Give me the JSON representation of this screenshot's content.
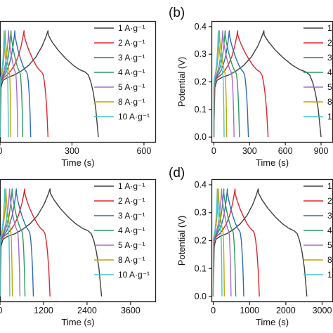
{
  "legend_entries": [
    "1 A·g⁻¹",
    "2 A·g⁻¹",
    "3 A·g⁻¹",
    "4 A·g⁻¹",
    "5 A·g⁻¹",
    "8 A·g⁻¹",
    "10 A·g⁻¹"
  ],
  "series_colors": [
    "#404040",
    "#e0232e",
    "#2c6cb5",
    "#2b9a5f",
    "#a86ad0",
    "#c4a400",
    "#3fc6d4"
  ],
  "chart_data": [
    {
      "panel": "a",
      "type": "line",
      "title": "",
      "xlabel": "Time (s)",
      "ylabel": "",
      "x_ticks": [
        "0",
        "300",
        "600"
      ],
      "x_ticks_partial": [
        "00"
      ],
      "y_ticks": [],
      "xlim": [
        0,
        650
      ],
      "ylim": [
        -0.02,
        0.42
      ],
      "legend": "top-right",
      "series": [
        {
          "name": "1 A·g⁻¹",
          "peak_time": 200,
          "end_time": 410
        },
        {
          "name": "2 A·g⁻¹",
          "peak_time": 100,
          "end_time": 200
        },
        {
          "name": "3 A·g⁻¹",
          "peak_time": 62,
          "end_time": 128
        },
        {
          "name": "4 A·g⁻¹",
          "peak_time": 46,
          "end_time": 95
        },
        {
          "name": "5 A·g⁻¹",
          "peak_time": 36,
          "end_time": 74
        },
        {
          "name": "8 A·g⁻¹",
          "peak_time": 22,
          "end_time": 45
        },
        {
          "name": "10 A·g⁻¹",
          "peak_time": 17,
          "end_time": 35
        }
      ]
    },
    {
      "panel": "b",
      "type": "line",
      "title": "",
      "xlabel": "Time (s)",
      "ylabel": "Potential (V)",
      "x_ticks": [
        "0",
        "300",
        "600",
        "900"
      ],
      "y_ticks": [
        "0.0",
        "0.1",
        "0.2",
        "0.3",
        "0.4"
      ],
      "xlim": [
        -20,
        1000
      ],
      "ylim": [
        -0.02,
        0.42
      ],
      "legend": "top-right",
      "series": [
        {
          "name": "1 A·g⁻¹",
          "peak_time": 420,
          "end_time": 900
        },
        {
          "name": "2 A·g⁻¹",
          "peak_time": 200,
          "end_time": 455
        },
        {
          "name": "3 A·g⁻¹",
          "peak_time": 130,
          "end_time": 290
        },
        {
          "name": "4 A·g⁻¹",
          "peak_time": 95,
          "end_time": 215
        },
        {
          "name": "5 A·g⁻¹",
          "peak_time": 75,
          "end_time": 170
        },
        {
          "name": "8 A·g⁻¹",
          "peak_time": 47,
          "end_time": 108
        },
        {
          "name": "10 A·g⁻¹",
          "peak_time": 37,
          "end_time": 86
        }
      ]
    },
    {
      "panel": "c",
      "type": "line",
      "title": "",
      "xlabel": "Time (s)",
      "ylabel": "",
      "x_ticks": [
        "0",
        "1200",
        "2400",
        "3600"
      ],
      "y_ticks": [],
      "xlim": [
        0,
        4300
      ],
      "ylim": [
        -0.02,
        0.42
      ],
      "legend": "top-right",
      "series": [
        {
          "name": "1 A·g⁻¹",
          "peak_time": 1380,
          "end_time": 2800
        },
        {
          "name": "2 A·g⁻¹",
          "peak_time": 680,
          "end_time": 1380
        },
        {
          "name": "3 A·g⁻¹",
          "peak_time": 450,
          "end_time": 920
        },
        {
          "name": "4 A·g⁻¹",
          "peak_time": 335,
          "end_time": 690
        },
        {
          "name": "5 A·g⁻¹",
          "peak_time": 265,
          "end_time": 550
        },
        {
          "name": "8 A·g⁻¹",
          "peak_time": 165,
          "end_time": 340
        },
        {
          "name": "10 A·g⁻¹",
          "peak_time": 130,
          "end_time": 270
        }
      ]
    },
    {
      "panel": "d",
      "type": "line",
      "title": "",
      "xlabel": "Time (s)",
      "ylabel": "Potential (V)",
      "x_ticks": [
        "0",
        "1000",
        "2000",
        "3000"
      ],
      "y_ticks": [
        "0.0",
        "0.1",
        "0.2",
        "0.3",
        "0.4"
      ],
      "xlim": [
        -50,
        3300
      ],
      "ylim": [
        -0.02,
        0.42
      ],
      "legend": "top-right",
      "series": [
        {
          "name": "1 A·g⁻¹",
          "peak_time": 1240,
          "end_time": 2580
        },
        {
          "name": "2 A·g⁻¹",
          "peak_time": 600,
          "end_time": 1270
        },
        {
          "name": "3 A·g⁻¹",
          "peak_time": 390,
          "end_time": 840
        },
        {
          "name": "4 A·g⁻¹",
          "peak_time": 290,
          "end_time": 620
        },
        {
          "name": "5 A·g⁻¹",
          "peak_time": 230,
          "end_time": 490
        },
        {
          "name": "8 A·g⁻¹",
          "peak_time": 140,
          "end_time": 305
        },
        {
          "name": "10 A·g⁻¹",
          "peak_time": 110,
          "end_time": 240
        }
      ]
    }
  ],
  "panel_letters": {
    "b": "(b)",
    "d": "(d)"
  }
}
